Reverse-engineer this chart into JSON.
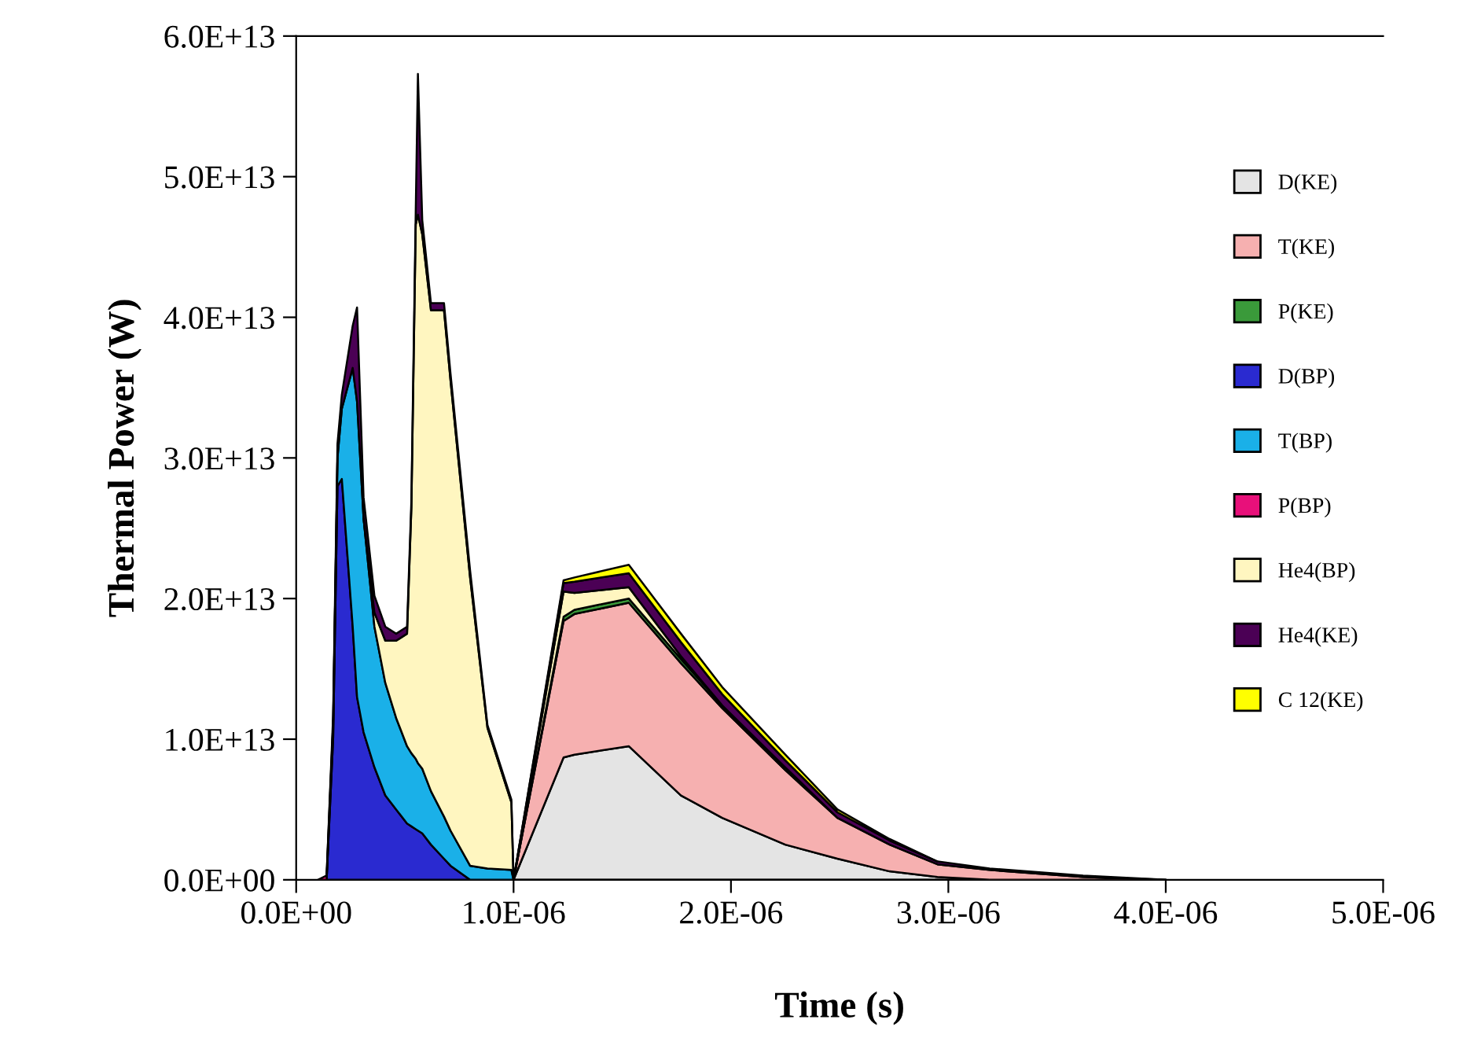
{
  "chart_data": {
    "type": "area",
    "stacked": true,
    "xlabel": "Time (s)",
    "ylabel": "Thermal Power (W)",
    "x": [
      1e-07,
      1.4e-07,
      1.7e-07,
      1.9e-07,
      2.1e-07,
      2.6e-07,
      2.8e-07,
      3.1e-07,
      3.6e-07,
      4.1e-07,
      4.6e-07,
      5.1e-07,
      5.3e-07,
      5.5e-07,
      5.6e-07,
      5.8e-07,
      6.2e-07,
      6.8e-07,
      7.1e-07,
      8e-07,
      8.8e-07,
      9.9e-07,
      1e-06,
      1.23e-06,
      1.28e-06,
      1.53e-06,
      1.77e-06,
      1.96e-06,
      2.25e-06,
      2.49e-06,
      2.73e-06,
      2.95e-06,
      3.19e-06,
      3.62e-06,
      4e-06
    ],
    "series": [
      {
        "name": "D(KE)",
        "color": "#e4e4e4",
        "values": [
          null,
          null,
          null,
          null,
          null,
          null,
          null,
          null,
          null,
          null,
          null,
          null,
          null,
          null,
          null,
          null,
          null,
          null,
          null,
          null,
          null,
          null,
          0,
          8700000000000.0,
          8900000000000.0,
          9500000000000.0,
          6000000000000.0,
          4400000000000.0,
          2500000000000.0,
          1500000000000.0,
          600000000000.0,
          200000000000.0,
          0,
          null,
          null
        ]
      },
      {
        "name": "T(KE)",
        "color": "#f6b0b0",
        "values": [
          null,
          null,
          null,
          null,
          null,
          null,
          null,
          null,
          null,
          null,
          null,
          null,
          null,
          null,
          null,
          null,
          null,
          null,
          null,
          null,
          null,
          null,
          0,
          9700000000000.0,
          10000000000000.0,
          10200000000000.0,
          9400000000000.0,
          7800000000000.0,
          5300000000000.0,
          2900000000000.0,
          1900000000000.0,
          900000000000.0,
          700000000000.0,
          200000000000.0,
          0
        ]
      },
      {
        "name": "P(KE)",
        "color": "#3a9a3a",
        "values": [
          null,
          null,
          null,
          null,
          null,
          null,
          null,
          null,
          null,
          null,
          null,
          null,
          null,
          null,
          null,
          null,
          null,
          null,
          null,
          null,
          null,
          null,
          0,
          300000000000.0,
          300000000000.0,
          300000000000.0,
          300000000000.0,
          200000000000.0,
          200000000000.0,
          0,
          null,
          null,
          null,
          null,
          null
        ]
      },
      {
        "name": "D(BP)",
        "color": "#2a2ad0",
        "values": [
          null,
          0,
          10000000000000.0,
          28000000000000.0,
          28500000000000.0,
          18000000000000.0,
          13000000000000.0,
          10500000000000.0,
          8000000000000.0,
          6000000000000.0,
          5000000000000.0,
          4000000000000.0,
          3800000000000.0,
          3600000000000.0,
          3500000000000.0,
          3300000000000.0,
          2500000000000.0,
          1500000000000.0,
          1000000000000.0,
          0,
          null,
          null,
          null,
          null,
          null,
          null,
          null,
          null,
          null,
          null,
          null,
          null,
          null,
          null,
          null
        ]
      },
      {
        "name": "T(BP)",
        "color": "#1ab0e8",
        "values": [
          null,
          0,
          1000000000000.0,
          2000000000000.0,
          5000000000000.0,
          18400000000000.0,
          21000000000000.0,
          15200000000000.0,
          10000000000000.0,
          8000000000000.0,
          6500000000000.0,
          5500000000000.0,
          5200000000000.0,
          5000000000000.0,
          4800000000000.0,
          4600000000000.0,
          3800000000000.0,
          3000000000000.0,
          2500000000000.0,
          1000000000000.0,
          800000000000.0,
          700000000000.0,
          0,
          null,
          null,
          null,
          null,
          null,
          null,
          null,
          null,
          null,
          null,
          null,
          null
        ]
      },
      {
        "name": "P(BP)",
        "color": "#e8107a",
        "values": [
          0,
          300000000000.0,
          200000000000.0,
          0,
          null,
          null,
          null,
          null,
          null,
          null,
          null,
          null,
          null,
          null,
          null,
          null,
          null,
          null,
          null,
          null,
          null,
          null,
          null,
          null,
          null,
          null,
          null,
          null,
          null,
          null,
          null,
          null,
          null,
          null,
          null
        ]
      },
      {
        "name": "He4(BP)",
        "color": "#fff6c0",
        "values": [
          null,
          null,
          null,
          null,
          null,
          null,
          null,
          0,
          1000000000000.0,
          3000000000000.0,
          5500000000000.0,
          8000000000000.0,
          17500000000000.0,
          38000000000000.0,
          39000000000000.0,
          38000000000000.0,
          34200000000000.0,
          36000000000000.0,
          32000000000000.0,
          20500000000000.0,
          10000000000000.0,
          4800000000000.0,
          0,
          1800000000000.0,
          1200000000000.0,
          800000000000.0,
          200000000000.0,
          0,
          null,
          null,
          null,
          null,
          null,
          null,
          null
        ]
      },
      {
        "name": "He4(KE)",
        "color": "#4b0055",
        "values": [
          null,
          0,
          500000000000.0,
          1000000000000.0,
          1000000000000.0,
          3000000000000.0,
          6700000000000.0,
          1500000000000.0,
          1200000000000.0,
          1000000000000.0,
          500000000000.0,
          500000000000.0,
          500000000000.0,
          1000000000000.0,
          10000000000000.0,
          1000000000000.0,
          500000000000.0,
          500000000000.0,
          500000000000.0,
          500000000000.0,
          200000000000.0,
          200000000000.0,
          0,
          600000000000.0,
          800000000000.0,
          1000000000000.0,
          1000000000000.0,
          800000000000.0,
          500000000000.0,
          400000000000.0,
          300000000000.0,
          200000000000.0,
          100000000000.0,
          100000000000.0,
          0
        ]
      },
      {
        "name": "C 12(KE)",
        "color": "#ffff00",
        "values": [
          null,
          null,
          null,
          null,
          null,
          null,
          null,
          null,
          null,
          null,
          null,
          null,
          null,
          null,
          null,
          null,
          null,
          null,
          null,
          null,
          null,
          null,
          0,
          200000000000.0,
          300000000000.0,
          600000000000.0,
          600000000000.0,
          500000000000.0,
          400000000000.0,
          200000000000.0,
          100000000000.0,
          0,
          null,
          null,
          null
        ]
      }
    ],
    "xlim": [
      0,
      5e-06
    ],
    "xticks": [
      {
        "value": 0,
        "label": "0.0E+00"
      },
      {
        "value": 1e-06,
        "label": "1.0E-06"
      },
      {
        "value": 2e-06,
        "label": "2.0E-06"
      },
      {
        "value": 3e-06,
        "label": "3.0E-06"
      },
      {
        "value": 4e-06,
        "label": "4.0E-06"
      },
      {
        "value": 5e-06,
        "label": "5.0E-06"
      }
    ],
    "ylim": [
      0,
      60000000000000.0
    ],
    "yticks": [
      {
        "value": 0,
        "label": "0.0E+00"
      },
      {
        "value": 10000000000000.0,
        "label": "1.0E+13"
      },
      {
        "value": 20000000000000.0,
        "label": "2.0E+13"
      },
      {
        "value": 30000000000000.0,
        "label": "3.0E+13"
      },
      {
        "value": 40000000000000.0,
        "label": "4.0E+13"
      },
      {
        "value": 50000000000000.0,
        "label": "5.0E+13"
      },
      {
        "value": 60000000000000.0,
        "label": "6.0E+13"
      }
    ],
    "grid": false,
    "legend": "right"
  }
}
